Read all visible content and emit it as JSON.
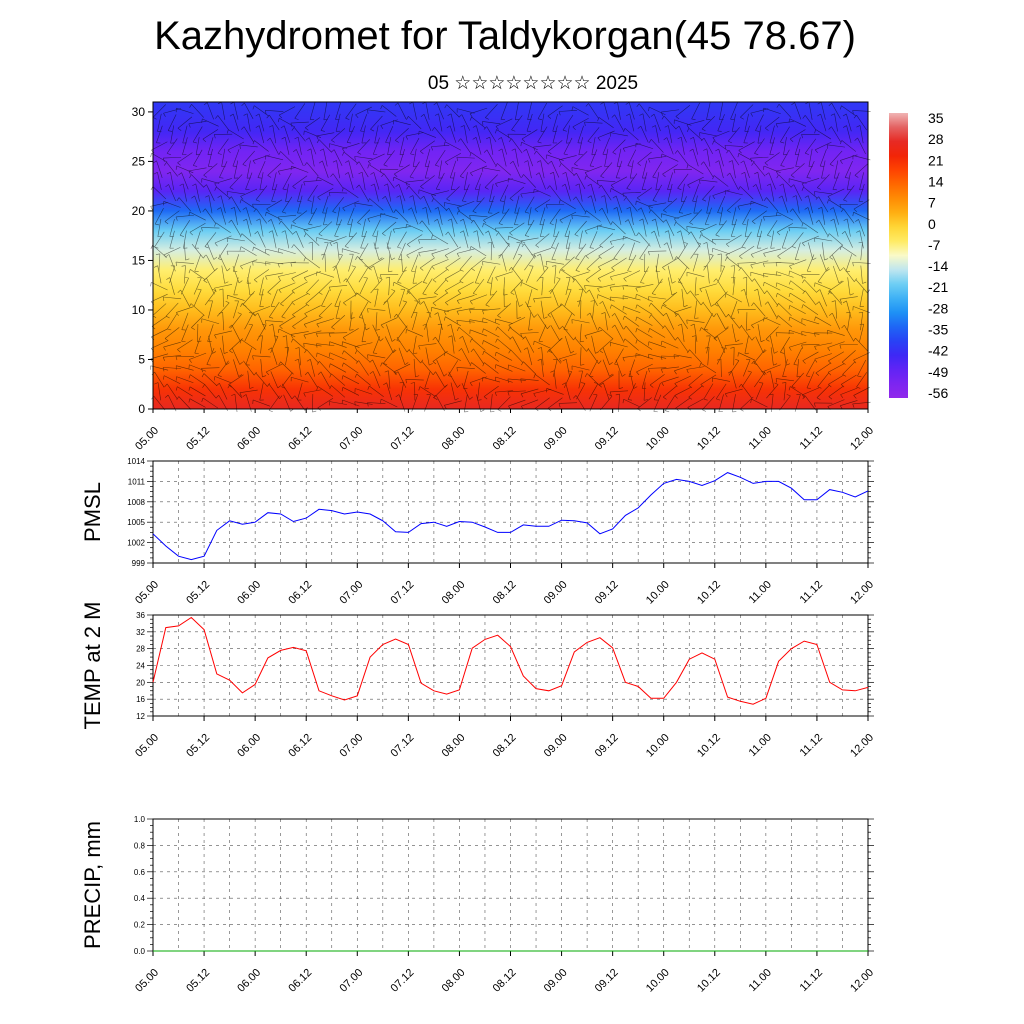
{
  "title": "Kazhydromet for Taldykorgan(45 78.67)",
  "subtitle": "05 ☆☆☆☆☆☆☆☆ 2025",
  "colors": {
    "pmsl_line": "#0000ff",
    "temp_line": "#ff0000",
    "precip_line": "#00aa00",
    "wind_barb": "#000000"
  },
  "chart_data": [
    {
      "type": "heatmap",
      "title": "",
      "xlabel": "",
      "ylabel": "",
      "x_ticks": [
        "05.00",
        "05.12",
        "06.00",
        "06.12",
        "07.00",
        "07.12",
        "08.00",
        "08.12",
        "09.00",
        "09.12",
        "10.00",
        "10.12",
        "11.00",
        "11.12",
        "12.00"
      ],
      "y_ticks": [
        0,
        5,
        10,
        15,
        20,
        25,
        30
      ],
      "ylim": [
        0,
        31
      ],
      "xlim": [
        0,
        168
      ],
      "colorbar_labels": [
        35,
        28,
        21,
        14,
        7,
        0,
        -7,
        -14,
        -21,
        -28,
        -35,
        -42,
        -49,
        -56
      ],
      "colorbar_range": [
        -60,
        38
      ],
      "temperature_profile": {
        "levels": [
          0,
          2,
          4,
          6,
          8,
          10,
          12,
          14,
          16,
          18,
          20,
          22,
          24,
          26,
          28,
          31
        ],
        "values": [
          28,
          21,
          14,
          10,
          7,
          2,
          -2,
          -7,
          -14,
          -21,
          -35,
          -49,
          -56,
          -53,
          -46,
          -42
        ]
      },
      "grid": false
    },
    {
      "type": "line",
      "title": "",
      "xlabel": "",
      "ylabel": "PMSL",
      "x_ticks": [
        "05.00",
        "05.12",
        "06.00",
        "06.12",
        "07.00",
        "07.12",
        "08.00",
        "08.12",
        "09.00",
        "09.12",
        "10.00",
        "10.12",
        "11.00",
        "11.12",
        "12.00"
      ],
      "y_ticks": [
        999,
        1002,
        1005,
        1008,
        1011,
        1014
      ],
      "ylim": [
        999,
        1014
      ],
      "x": [
        0,
        3,
        6,
        9,
        12,
        15,
        18,
        21,
        24,
        27,
        30,
        33,
        36,
        39,
        42,
        45,
        48,
        51,
        54,
        57,
        60,
        63,
        66,
        69,
        72,
        75,
        78,
        81,
        84,
        87,
        90,
        93,
        96,
        99,
        102,
        105,
        108,
        111,
        114,
        117,
        120,
        123,
        126,
        129,
        132,
        135,
        138,
        141,
        144,
        147,
        150,
        153,
        156,
        159,
        162,
        165,
        168
      ],
      "series": [
        {
          "values": [
            1003.3,
            1001.5,
            1000.0,
            999.5,
            1000.0,
            1003.8,
            1005.2,
            1004.7,
            1005.0,
            1006.4,
            1006.2,
            1005.1,
            1005.6,
            1006.9,
            1006.7,
            1006.2,
            1006.5,
            1006.2,
            1005.2,
            1003.6,
            1003.5,
            1004.8,
            1005.0,
            1004.4,
            1005.1,
            1005.0,
            1004.3,
            1003.5,
            1003.5,
            1004.6,
            1004.4,
            1004.4,
            1005.3,
            1005.2,
            1004.9,
            1003.3,
            1004.0,
            1006.0,
            1007.1,
            1009.0,
            1010.7,
            1011.3,
            1011.0,
            1010.4,
            1011.1,
            1012.3,
            1011.6,
            1010.7,
            1011.0,
            1011.0,
            1010.0,
            1008.3,
            1008.3,
            1009.8,
            1009.4,
            1008.7,
            1009.6
          ]
        }
      ],
      "grid": true
    },
    {
      "type": "line",
      "title": "",
      "xlabel": "",
      "ylabel": "TEMP at 2 M",
      "x_ticks": [
        "05.00",
        "05.12",
        "06.00",
        "06.12",
        "07.00",
        "07.12",
        "08.00",
        "08.12",
        "09.00",
        "09.12",
        "10.00",
        "10.12",
        "11.00",
        "11.12",
        "12.00"
      ],
      "y_ticks": [
        12,
        16,
        20,
        24,
        28,
        32,
        36
      ],
      "ylim": [
        12,
        36
      ],
      "x": [
        0,
        3,
        6,
        9,
        12,
        15,
        18,
        21,
        24,
        27,
        30,
        33,
        36,
        39,
        42,
        45,
        48,
        51,
        54,
        57,
        60,
        63,
        66,
        69,
        72,
        75,
        78,
        81,
        84,
        87,
        90,
        93,
        96,
        99,
        102,
        105,
        108,
        111,
        114,
        117,
        120,
        123,
        126,
        129,
        132,
        135,
        138,
        141,
        144,
        147,
        150,
        153,
        156,
        159,
        162,
        165,
        168
      ],
      "series": [
        {
          "values": [
            20,
            33,
            33.4,
            35.4,
            32.5,
            22,
            20.5,
            17.5,
            19.5,
            25.8,
            27.6,
            28.3,
            27.5,
            18,
            16.8,
            15.8,
            16.8,
            26,
            29,
            30.3,
            29,
            19.8,
            18,
            17.2,
            18.2,
            28.1,
            30.2,
            31.2,
            28.5,
            21.5,
            18.5,
            18,
            19.2,
            27.2,
            29.5,
            30.6,
            28.2,
            20,
            19,
            16.2,
            16.2,
            20,
            25.5,
            27,
            25.5,
            16.5,
            15.5,
            14.8,
            16.2,
            25,
            28,
            29.8,
            29,
            20,
            18.2,
            18,
            18.8
          ]
        }
      ],
      "grid": true
    },
    {
      "type": "line",
      "title": "",
      "xlabel": "",
      "ylabel": "PRECIP, mm",
      "x_ticks": [
        "05.00",
        "05.12",
        "06.00",
        "06.12",
        "07.00",
        "07.12",
        "08.00",
        "08.12",
        "09.00",
        "09.12",
        "10.00",
        "10.12",
        "11.00",
        "11.12",
        "12.00"
      ],
      "y_ticks": [
        "0.0",
        "0.2",
        "0.4",
        "0.6",
        "0.8",
        "1.0"
      ],
      "ylim": [
        0,
        1
      ],
      "x": [
        0,
        168
      ],
      "series": [
        {
          "values": [
            0,
            0
          ]
        }
      ],
      "grid": true
    }
  ]
}
